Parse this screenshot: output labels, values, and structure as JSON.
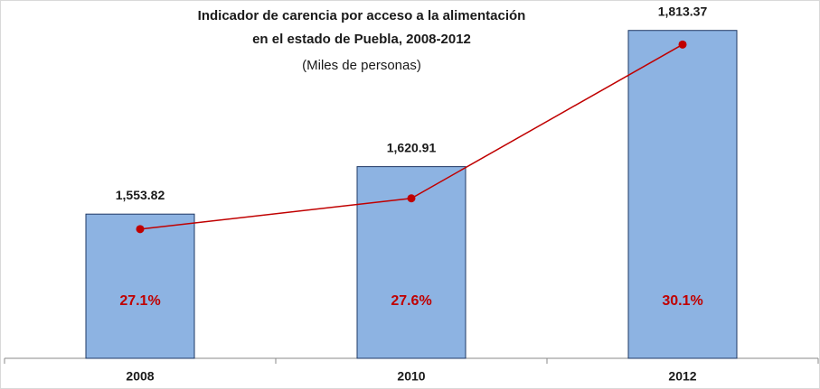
{
  "chart_data": {
    "type": "bar-line",
    "title": [
      "Indicador de carencia por acceso a la alimentación",
      "en el estado de Puebla, 2008-2012"
    ],
    "subtitle": "(Miles de personas)",
    "categories": [
      "2008",
      "2010",
      "2012"
    ],
    "ylim": [
      1350,
      1850
    ],
    "y2lim": [
      25,
      30.75
    ],
    "series": [
      {
        "type": "bar",
        "color": "#8db3e2",
        "values": [
          1553.82,
          1620.91,
          1813.37
        ],
        "value_labels": [
          "1,553.82",
          "1,620.91",
          "1,813.37"
        ]
      },
      {
        "type": "line",
        "axis": "y2",
        "color": "#c00000",
        "values": [
          27.1,
          27.6,
          30.1
        ],
        "value_labels": [
          "27.1%",
          "27.6%",
          "30.1%"
        ]
      }
    ]
  }
}
